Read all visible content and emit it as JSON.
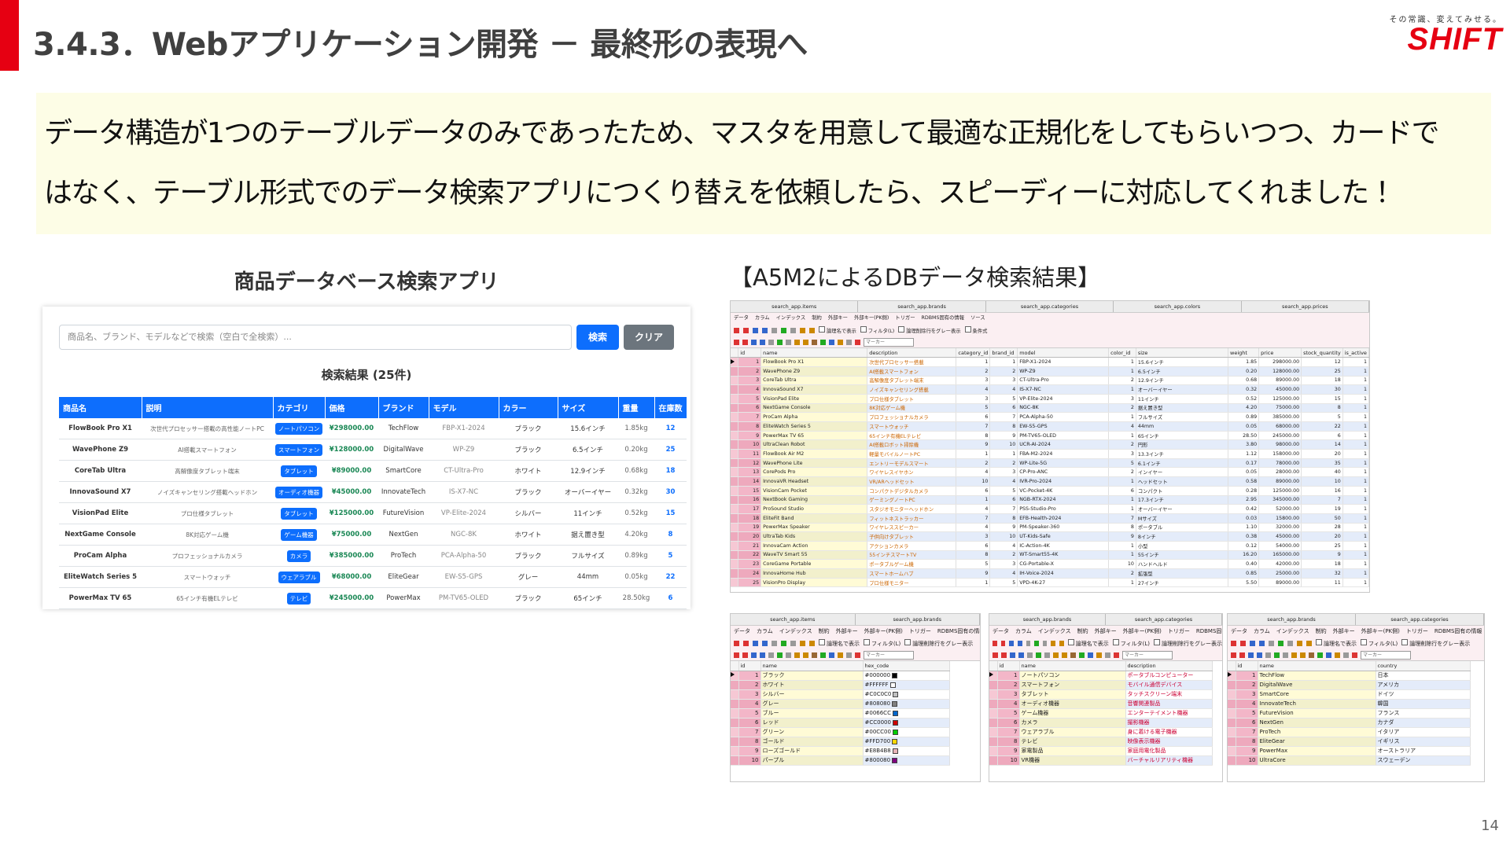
{
  "header": {
    "title": "3.4.3．Webアプリケーション開発 － 最終形の表現へ",
    "tagline": "その常識、変えてみせる。",
    "logo": "SHIFT"
  },
  "message": {
    "lines": [
      "データ構造が1つのテーブルデータのみであったため、マスタを用意して最適な正規化をしてもらいつつ、カードで",
      "はなく、テーブル形式でのデータ検索アプリにつくり替えを依頼したら、スピーディーに対応してくれました！"
    ]
  },
  "app": {
    "caption": "商品データベース検索アプリ",
    "search_placeholder": "商品名、ブランド、モデルなどで検索（空白で全検索）...",
    "search_button": "検索",
    "clear_button": "クリア",
    "result_title": "検索結果 (25件)",
    "columns": [
      "商品名",
      "説明",
      "カテゴリ",
      "価格",
      "ブランド",
      "モデル",
      "カラー",
      "サイズ",
      "重量",
      "在庫数"
    ],
    "rows": [
      [
        "FlowBook Pro X1",
        "次世代プロセッサー搭載の高性能ノートPC",
        "ノートパソコン",
        "¥298000.00",
        "TechFlow",
        "FBP-X1-2024",
        "ブラック",
        "15.6インチ",
        "1.85kg",
        "12"
      ],
      [
        "WavePhone Z9",
        "AI搭載スマートフォン",
        "スマートフォン",
        "¥128000.00",
        "DigitalWave",
        "WP-Z9",
        "ブラック",
        "6.5インチ",
        "0.20kg",
        "25"
      ],
      [
        "CoreTab Ultra",
        "高解像度タブレット端末",
        "タブレット",
        "¥89000.00",
        "SmartCore",
        "CT-Ultra-Pro",
        "ホワイト",
        "12.9インチ",
        "0.68kg",
        "18"
      ],
      [
        "InnovaSound X7",
        "ノイズキャンセリング搭載ヘッドホン",
        "オーディオ機器",
        "¥45000.00",
        "InnovateTech",
        "IS-X7-NC",
        "ブラック",
        "オーバーイヤー",
        "0.32kg",
        "30"
      ],
      [
        "VisionPad Elite",
        "プロ仕様タブレット",
        "タブレット",
        "¥125000.00",
        "FutureVision",
        "VP-Elite-2024",
        "シルバー",
        "11インチ",
        "0.52kg",
        "15"
      ],
      [
        "NextGame Console",
        "8K対応ゲーム機",
        "ゲーム機器",
        "¥75000.00",
        "NextGen",
        "NGC-8K",
        "ホワイト",
        "据え置き型",
        "4.20kg",
        "8"
      ],
      [
        "ProCam Alpha",
        "プロフェッショナルカメラ",
        "カメラ",
        "¥385000.00",
        "ProTech",
        "PCA-Alpha-50",
        "ブラック",
        "フルサイズ",
        "0.89kg",
        "5"
      ],
      [
        "EliteWatch Series 5",
        "スマートウォッチ",
        "ウェアラブル",
        "¥68000.00",
        "EliteGear",
        "EW-S5-GPS",
        "グレー",
        "44mm",
        "0.05kg",
        "22"
      ],
      [
        "PowerMax TV 65",
        "65インチ有機ELテレビ",
        "テレビ",
        "¥245000.00",
        "PowerMax",
        "PM-TV65-OLED",
        "ブラック",
        "65インチ",
        "28.50kg",
        "6"
      ]
    ]
  },
  "db": {
    "caption": "【A5M2によるDBデータ検索結果】",
    "main": {
      "tabs": [
        "search_app.items",
        "search_app.brands",
        "search_app.categories",
        "search_app.colors",
        "search_app.prices"
      ],
      "menu": [
        "データ",
        "カラム",
        "インデックス",
        "制約",
        "外部キー",
        "外部キー(PK側)",
        "トリガー",
        "RDBMS固有の情報",
        "ソース"
      ],
      "options": [
        "論理名で表示",
        "フィルタ(L)",
        "論理削除行をグレー表示",
        "条件式"
      ],
      "filter": "マーカー",
      "columns": [
        "id",
        "name",
        "description",
        "category_id",
        "brand_id",
        "model",
        "color_id",
        "size",
        "weight",
        "price",
        "stock_quantity",
        "is_active"
      ],
      "rows": [
        [
          "1",
          "FlowBook Pro X1",
          "次世代プロセッサー搭載",
          "1",
          "1",
          "FBP-X1-2024",
          "1",
          "15.6インチ",
          "1.85",
          "298000.00",
          "12",
          "1"
        ],
        [
          "2",
          "WavePhone Z9",
          "AI搭載スマートフォン",
          "2",
          "2",
          "WP-Z9",
          "1",
          "6.5インチ",
          "0.20",
          "128000.00",
          "25",
          "1"
        ],
        [
          "3",
          "CoreTab Ultra",
          "高解像度タブレット端末",
          "3",
          "3",
          "CT-Ultra-Pro",
          "2",
          "12.9インチ",
          "0.68",
          "89000.00",
          "18",
          "1"
        ],
        [
          "4",
          "InnovaSound X7",
          "ノイズキャンセリング搭載",
          "4",
          "4",
          "IS-X7-NC",
          "1",
          "オーバーイヤー",
          "0.32",
          "45000.00",
          "30",
          "1"
        ],
        [
          "5",
          "VisionPad Elite",
          "プロ仕様タブレット",
          "3",
          "5",
          "VP-Elite-2024",
          "3",
          "11インチ",
          "0.52",
          "125000.00",
          "15",
          "1"
        ],
        [
          "6",
          "NextGame Console",
          "8K対応ゲーム機",
          "5",
          "6",
          "NGC-8K",
          "2",
          "据え置き型",
          "4.20",
          "75000.00",
          "8",
          "1"
        ],
        [
          "7",
          "ProCam Alpha",
          "プロフェッショナルカメラ",
          "6",
          "7",
          "PCA-Alpha-50",
          "1",
          "フルサイズ",
          "0.89",
          "385000.00",
          "5",
          "1"
        ],
        [
          "8",
          "EliteWatch Series 5",
          "スマートウォッチ",
          "7",
          "8",
          "EW-S5-GPS",
          "4",
          "44mm",
          "0.05",
          "68000.00",
          "22",
          "1"
        ],
        [
          "9",
          "PowerMax TV 65",
          "65インチ有機ELテレビ",
          "8",
          "9",
          "PM-TV65-OLED",
          "1",
          "65インチ",
          "28.50",
          "245000.00",
          "6",
          "1"
        ],
        [
          "10",
          "UltraClean Robot",
          "AI搭載ロボット掃除機",
          "9",
          "10",
          "UCR-AI-2024",
          "2",
          "円形",
          "3.80",
          "98000.00",
          "14",
          "1"
        ],
        [
          "11",
          "FlowBook Air M2",
          "軽量モバイルノートPC",
          "1",
          "1",
          "FBA-M2-2024",
          "3",
          "13.3インチ",
          "1.12",
          "158000.00",
          "20",
          "1"
        ],
        [
          "12",
          "WavePhone Lite",
          "エントリーモデルスマート",
          "2",
          "2",
          "WP-Lite-5G",
          "5",
          "6.1インチ",
          "0.17",
          "78000.00",
          "35",
          "1"
        ],
        [
          "13",
          "CorePods Pro",
          "ワイヤレスイヤホン",
          "4",
          "3",
          "CP-Pro-ANC",
          "2",
          "インイヤー",
          "0.05",
          "28000.00",
          "40",
          "1"
        ],
        [
          "14",
          "InnovaVR Headset",
          "VR/ARヘッドセット",
          "10",
          "4",
          "IVR-Pro-2024",
          "1",
          "ヘッドセット",
          "0.58",
          "89000.00",
          "10",
          "1"
        ],
        [
          "15",
          "VisionCam Pocket",
          "コンパクトデジタルカメラ",
          "6",
          "5",
          "VC-Pocket-4K",
          "6",
          "コンパクト",
          "0.28",
          "125000.00",
          "16",
          "1"
        ],
        [
          "16",
          "NextBook Gaming",
          "ゲーミングノートPC",
          "1",
          "6",
          "NGB-RTX-2024",
          "1",
          "17.3インチ",
          "2.95",
          "345000.00",
          "7",
          "1"
        ],
        [
          "17",
          "ProSound Studio",
          "スタジオモニターヘッドホン",
          "4",
          "7",
          "PSS-Studio-Pro",
          "1",
          "オーバーイヤー",
          "0.42",
          "52000.00",
          "19",
          "1"
        ],
        [
          "18",
          "EliteFit Band",
          "フィットネストラッカー",
          "7",
          "8",
          "EFB-Health-2024",
          "7",
          "Mサイズ",
          "0.03",
          "15800.00",
          "50",
          "1"
        ],
        [
          "19",
          "PowerMax Speaker",
          "ワイヤレススピーカー",
          "4",
          "9",
          "PM-Speaker-360",
          "8",
          "ポータブル",
          "1.10",
          "32000.00",
          "28",
          "1"
        ],
        [
          "20",
          "UltraTab Kids",
          "子供向けタブレット",
          "3",
          "10",
          "UT-Kids-Safe",
          "9",
          "8インチ",
          "0.38",
          "45000.00",
          "20",
          "1"
        ],
        [
          "21",
          "InnovaCam Action",
          "アクションカメラ",
          "6",
          "4",
          "IC-Action-4K",
          "1",
          "小型",
          "0.12",
          "54000.00",
          "25",
          "1"
        ],
        [
          "22",
          "WaveTV Smart 55",
          "55インチスマートTV",
          "8",
          "2",
          "WT-Smart55-4K",
          "1",
          "55インチ",
          "16.20",
          "165000.00",
          "9",
          "1"
        ],
        [
          "23",
          "CoreGame Portable",
          "ポータブルゲーム機",
          "5",
          "3",
          "CG-Portable-X",
          "10",
          "ハンドヘルド",
          "0.40",
          "42000.00",
          "18",
          "1"
        ],
        [
          "24",
          "InnovaHome Hub",
          "スマートホームハブ",
          "9",
          "4",
          "IH-Voice-2024",
          "2",
          "拡張型",
          "0.85",
          "25000.00",
          "32",
          "1"
        ],
        [
          "25",
          "VisionPro Display",
          "プロ仕様モニター",
          "1",
          "5",
          "VPD-4K-27",
          "1",
          "27インチ",
          "5.50",
          "89000.00",
          "11",
          "1"
        ]
      ]
    },
    "grids": [
      {
        "tabs": [
          "search_app.items",
          "search_app.brands"
        ],
        "menu": [
          "データ",
          "カラム",
          "インデックス",
          "制約",
          "外部キー",
          "外部キー(PK側)",
          "トリガー",
          "RDBMS固有の情報"
        ],
        "options": [
          "論理名で表示",
          "フィルタ(L)",
          "論理削除行をグレー表示"
        ],
        "filter": "マーカー",
        "columns": [
          "id",
          "name",
          "hex_code"
        ],
        "rows": [
          [
            "1",
            "ブラック",
            "#000000"
          ],
          [
            "2",
            "ホワイト",
            "#FFFFFF"
          ],
          [
            "3",
            "シルバー",
            "#C0C0C0"
          ],
          [
            "4",
            "グレー",
            "#808080"
          ],
          [
            "5",
            "ブルー",
            "#0066CC"
          ],
          [
            "6",
            "レッド",
            "#CC0000"
          ],
          [
            "7",
            "グリーン",
            "#00CC00"
          ],
          [
            "8",
            "ゴールド",
            "#FFD700"
          ],
          [
            "9",
            "ローズゴールド",
            "#E8B4B8"
          ],
          [
            "10",
            "パープル",
            "#800080"
          ]
        ]
      },
      {
        "tabs": [
          "search_app.brands",
          "search_app.categories"
        ],
        "menu": [
          "データ",
          "カラム",
          "インデックス",
          "制約",
          "外部キー",
          "外部キー(PK側)",
          "トリガー",
          "RDBMS固有の情報"
        ],
        "options": [
          "論理名で表示",
          "フィルタ(L)",
          "論理削除行をグレー表示"
        ],
        "filter": "マーカー",
        "columns": [
          "id",
          "name",
          "description"
        ],
        "rows": [
          [
            "1",
            "ノートパソコン",
            "ポータブルコンピューター"
          ],
          [
            "2",
            "スマートフォン",
            "モバイル通信デバイス"
          ],
          [
            "3",
            "タブレット",
            "タッチスクリーン端末"
          ],
          [
            "4",
            "オーディオ機器",
            "音響関連製品"
          ],
          [
            "5",
            "ゲーム機器",
            "エンターテイメント機器"
          ],
          [
            "6",
            "カメラ",
            "撮影機器"
          ],
          [
            "7",
            "ウェアラブル",
            "身に着ける電子機器"
          ],
          [
            "8",
            "テレビ",
            "映像表示機器"
          ],
          [
            "9",
            "家電製品",
            "家庭用電化製品"
          ],
          [
            "10",
            "VR機器",
            "バーチャルリアリティ機器"
          ]
        ]
      },
      {
        "tabs": [
          "search_app.brands",
          "search_app.categories"
        ],
        "menu": [
          "データ",
          "カラム",
          "インデックス",
          "制約",
          "外部キー",
          "外部キー(PK側)",
          "トリガー",
          "RDBMS固有の情報"
        ],
        "options": [
          "論理名で表示",
          "フィルタ(L)",
          "論理削除行をグレー表示"
        ],
        "filter": "マーカー",
        "columns": [
          "id",
          "name",
          "country"
        ],
        "rows": [
          [
            "1",
            "TechFlow",
            "日本"
          ],
          [
            "2",
            "DigitalWave",
            "アメリカ"
          ],
          [
            "3",
            "SmartCore",
            "ドイツ"
          ],
          [
            "4",
            "InnovateTech",
            "韓国"
          ],
          [
            "5",
            "FutureVision",
            "フランス"
          ],
          [
            "6",
            "NextGen",
            "カナダ"
          ],
          [
            "7",
            "ProTech",
            "イタリア"
          ],
          [
            "8",
            "EliteGear",
            "イギリス"
          ],
          [
            "9",
            "PowerMax",
            "オーストラリア"
          ],
          [
            "10",
            "UltraCore",
            "スウェーデン"
          ]
        ]
      }
    ]
  },
  "page_number": "14"
}
